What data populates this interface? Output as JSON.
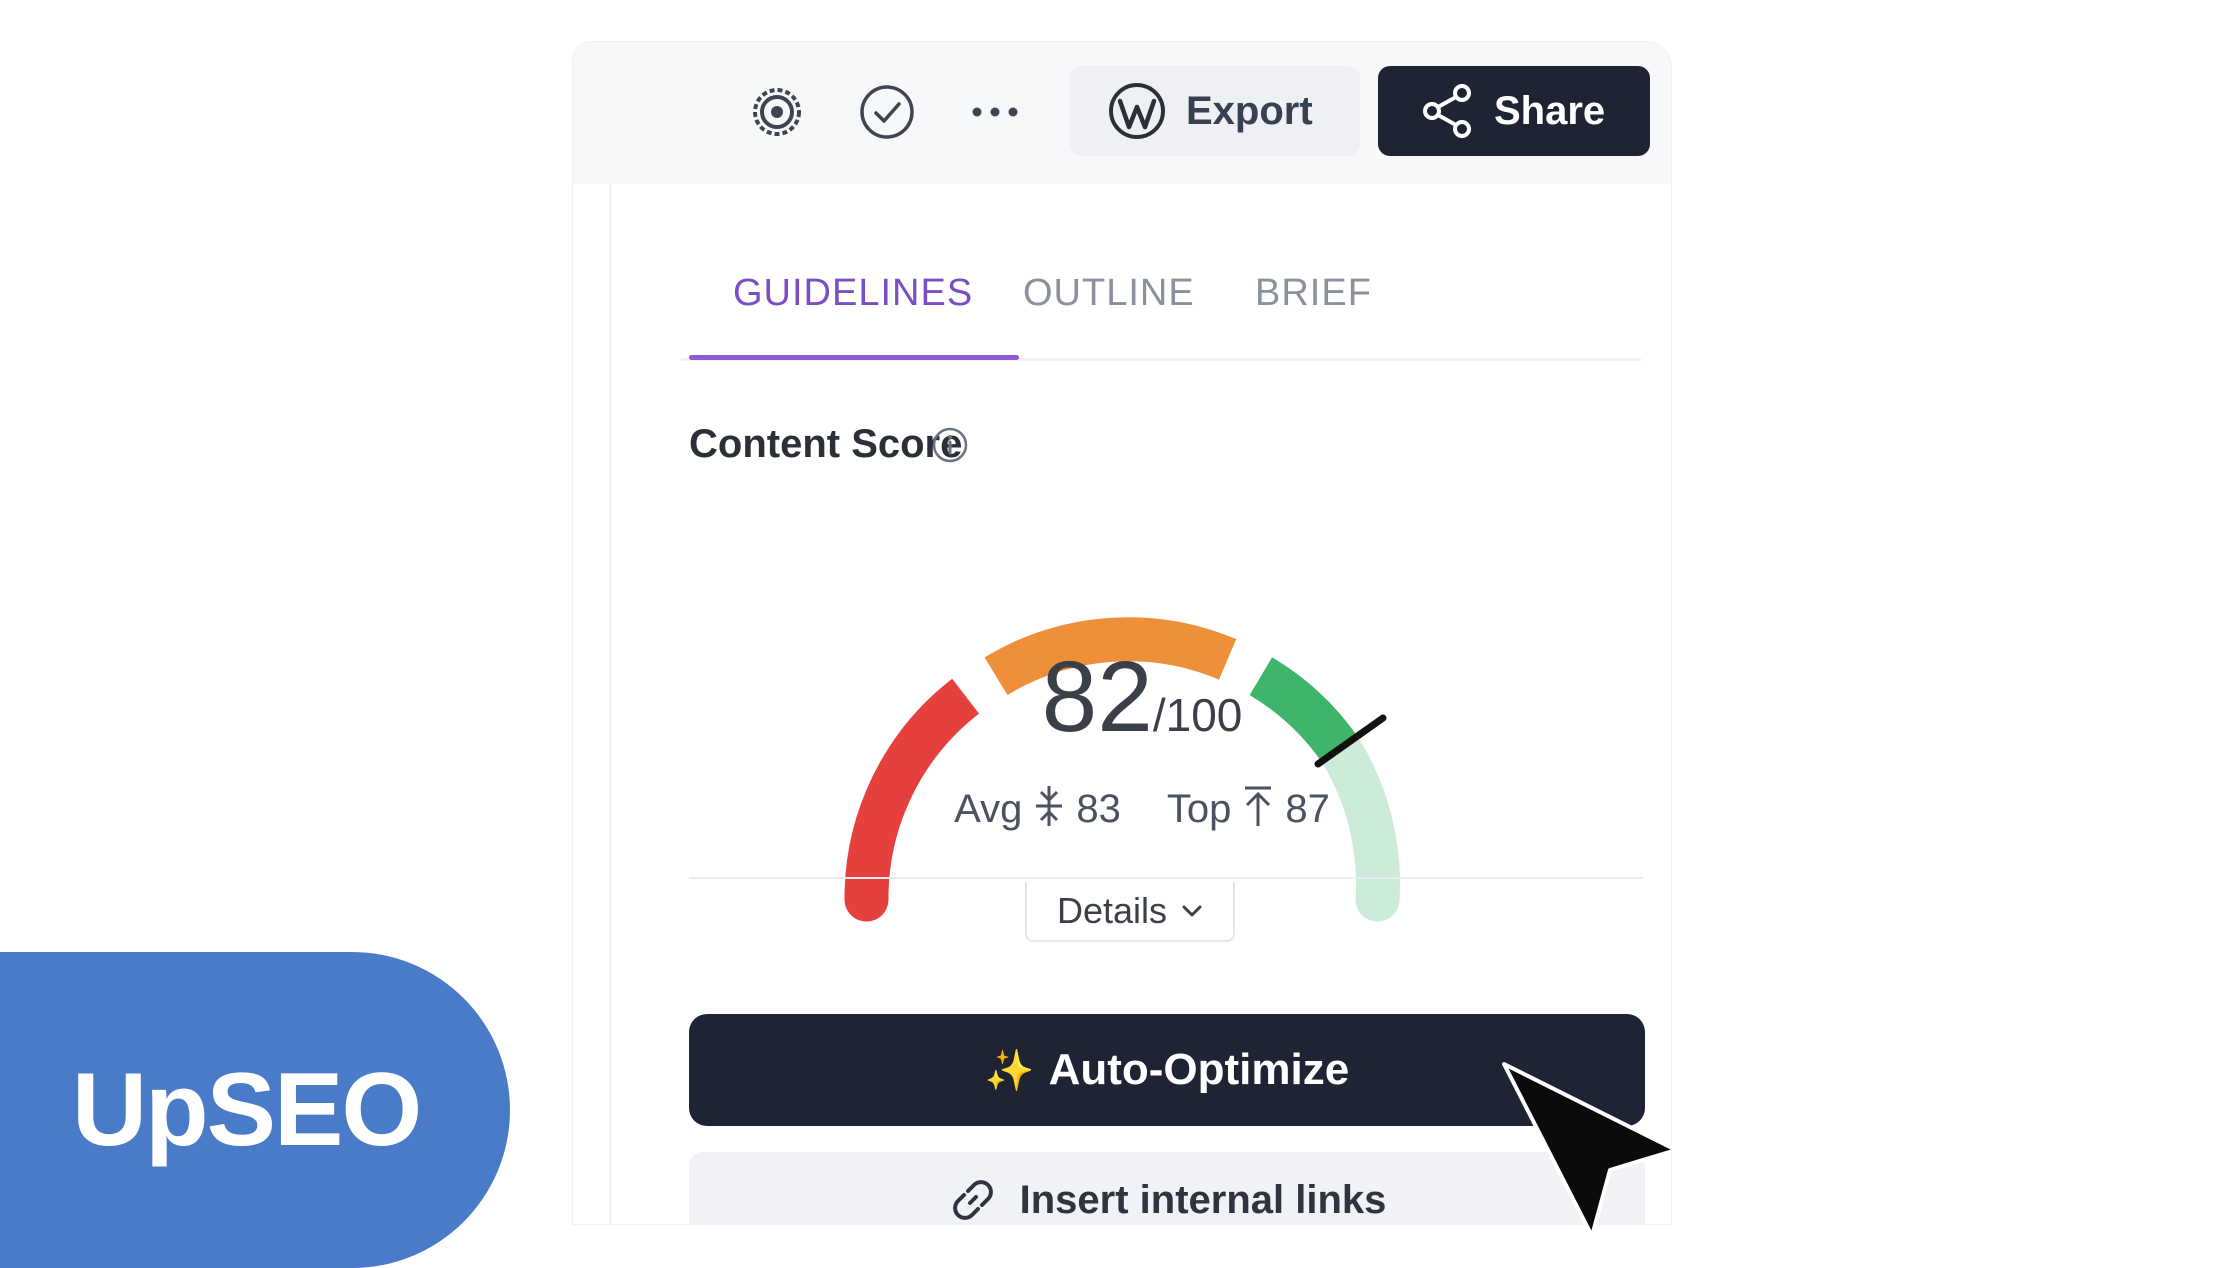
{
  "toolbar": {
    "icons": [
      "settings-icon",
      "check-circle-icon",
      "more-icon"
    ],
    "export_label": "Export",
    "share_label": "Share"
  },
  "tabs": [
    {
      "label": "GUIDELINES",
      "active": true
    },
    {
      "label": "OUTLINE",
      "active": false
    },
    {
      "label": "BRIEF",
      "active": false
    }
  ],
  "content_score": {
    "title": "Content Score",
    "score": "82",
    "max": "/100",
    "avg_label": "Avg",
    "avg_value": "83",
    "top_label": "Top",
    "top_value": "87",
    "gauge_colors": {
      "low": "#e5403d",
      "mid": "#ee8f3a",
      "high": "#3fb56b",
      "top": "#cdebd9"
    }
  },
  "details_label": "Details",
  "auto_optimize_label": "Auto-Optimize",
  "insert_links_label": "Insert internal links",
  "logo": {
    "text": "UpSEO",
    "color": "#4a7bc8"
  }
}
